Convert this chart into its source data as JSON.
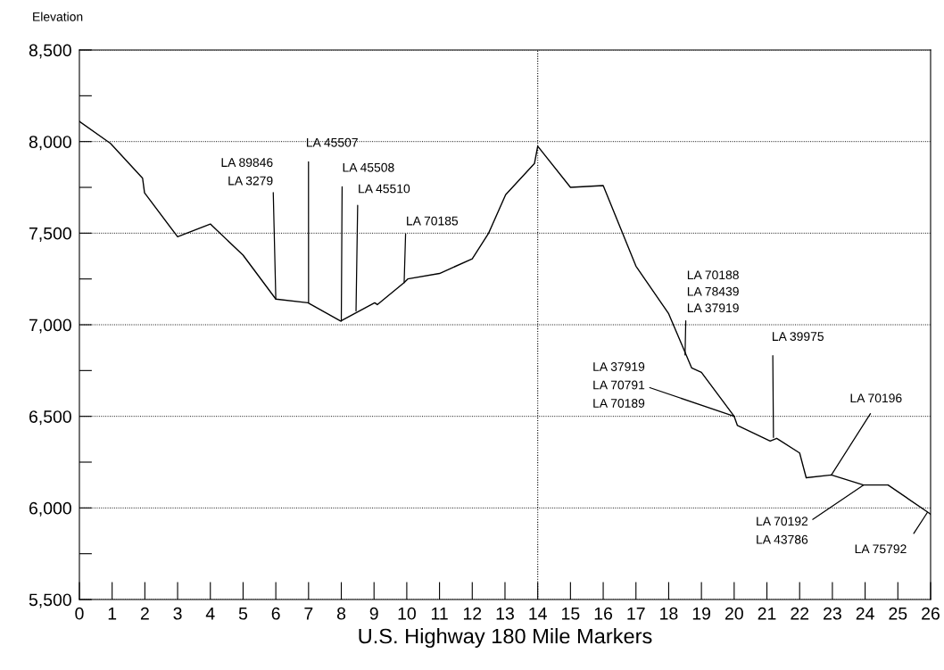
{
  "chart_data": {
    "type": "line",
    "ylabel": "Elevation",
    "xlabel": "U.S. Highway 180 Mile Markers",
    "x": [
      0,
      0.95,
      1.93,
      1.99,
      3.0,
      4.0,
      5.0,
      6.0,
      6.98,
      7.98,
      9.02,
      9.1,
      9.92,
      10.03,
      11.0,
      12.0,
      12.5,
      13.02,
      13.9,
      14.0,
      15.0,
      16.0,
      17.0,
      18.0,
      18.7,
      19.0,
      20.0,
      20.1,
      21.1,
      21.3,
      22.0,
      22.2,
      22.97,
      23.95,
      24.7,
      25.97,
      26.0
    ],
    "series": [
      {
        "color": "#000000",
        "values": [
          8110,
          7990,
          7800,
          7720,
          7480,
          7550,
          7380,
          7140,
          7120,
          7020,
          7120,
          7110,
          7230,
          7250,
          7280,
          7360,
          7500,
          7710,
          7880,
          7975,
          7750,
          7760,
          7320,
          7060,
          6765,
          6740,
          6500,
          6450,
          6365,
          6380,
          6300,
          6165,
          6180,
          6125,
          6125,
          5970,
          5965
        ]
      }
    ],
    "xlim": [
      0,
      26
    ],
    "ylim": [
      5500,
      8500
    ],
    "xticks": [
      0,
      1,
      2,
      3,
      4,
      5,
      6,
      7,
      8,
      9,
      10,
      11,
      12,
      13,
      14,
      15,
      16,
      17,
      18,
      19,
      20,
      21,
      22,
      23,
      24,
      25,
      26
    ],
    "yticks": [
      {
        "value": 5500,
        "label": "5,500"
      },
      {
        "value": 5750,
        "label": null
      },
      {
        "value": 6000,
        "label": "6,000"
      },
      {
        "value": 6250,
        "label": null
      },
      {
        "value": 6500,
        "label": "6,500"
      },
      {
        "value": 6750,
        "label": null
      },
      {
        "value": 7000,
        "label": "7,000"
      },
      {
        "value": 7250,
        "label": null
      },
      {
        "value": 7500,
        "label": "7,500"
      },
      {
        "value": 7750,
        "label": null
      },
      {
        "value": 8000,
        "label": "8,000"
      },
      {
        "value": 8250,
        "label": null
      },
      {
        "value": 8500,
        "label": "8,500"
      }
    ],
    "grid": "y",
    "legend": false,
    "marker": "none",
    "line_style": "solid",
    "ref_lines": [
      {
        "axis": "x",
        "value": 14,
        "color": "#000000",
        "line_style": "dotted"
      }
    ],
    "annotations": [
      {
        "text": "LA 89846\nLA 3279",
        "x": 6,
        "y": 7140
      },
      {
        "text": "LA 45507",
        "x": 7,
        "y": 7120
      },
      {
        "text": "LA 45508",
        "x": 8,
        "y": 7020
      },
      {
        "text": "LA 45510",
        "x": 8.45,
        "y": 7075
      },
      {
        "text": "LA 70185",
        "x": 9.92,
        "y": 7230
      },
      {
        "text": "LA 70188\nLA 78439\nLA 37919",
        "x": 18.5,
        "y": 6835
      },
      {
        "text": "LA 37919\nLA 70791\nLA 70189",
        "x": 20,
        "y": 6500
      },
      {
        "text": "LA 39975",
        "x": 21.2,
        "y": 6385
      },
      {
        "text": "LA 70196",
        "x": 22.97,
        "y": 6180
      },
      {
        "text": "LA 70192\nLA 43786",
        "x": 23.95,
        "y": 6125
      },
      {
        "text": "LA 75792",
        "x": 25.9,
        "y": 5975
      }
    ]
  }
}
